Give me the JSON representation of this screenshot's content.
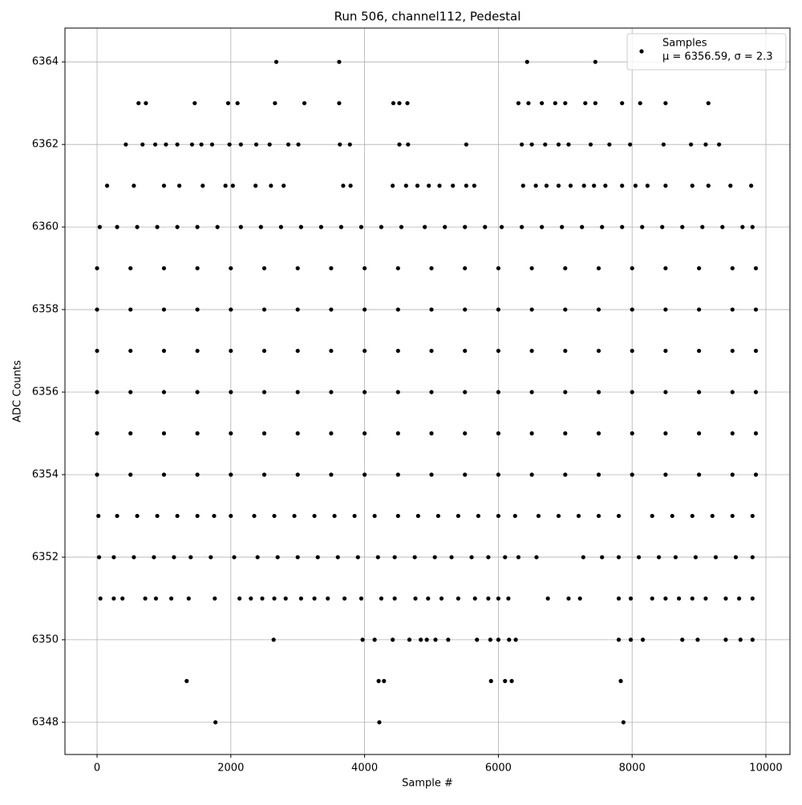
{
  "chart_data": {
    "type": "scatter",
    "title": "Run 506, channel112, Pedestal",
    "x_label": "Sample #",
    "y_label": "ADC Counts",
    "xlim": [
      -480,
      10360
    ],
    "ylim": [
      6347.22,
      6364.82
    ],
    "xticks": [
      0,
      2000,
      4000,
      6000,
      8000,
      10000
    ],
    "yticks": [
      6348,
      6350,
      6352,
      6354,
      6356,
      6358,
      6360,
      6362,
      6364
    ],
    "grid": true,
    "legend_position": "upper right",
    "series": [
      {
        "name": "Samples",
        "annotation": "μ = 6356.59, σ = 2.3",
        "color": "#000000",
        "rows": [
          {
            "y": 6364,
            "x": [
              2680,
              3620,
              6430,
              7450
            ]
          },
          {
            "y": 6363,
            "x": [
              620,
              730,
              1460,
              1960,
              2100,
              2660,
              3100,
              3620,
              4430,
              4520,
              4640,
              6300,
              6450,
              6650,
              6850,
              7000,
              7300,
              7450,
              7850,
              8120,
              8500,
              9140
            ]
          },
          {
            "y": 6362,
            "x": [
              430,
              680,
              870,
              1030,
              1200,
              1420,
              1560,
              1720,
              1980,
              2150,
              2380,
              2580,
              2860,
              3010,
              3630,
              3780,
              4520,
              4650,
              5520,
              6350,
              6500,
              6700,
              6900,
              7050,
              7380,
              7660,
              7970,
              8470,
              8880,
              9100,
              9300
            ]
          },
          {
            "y": 6361,
            "x": [
              150,
              550,
              1000,
              1230,
              1580,
              1920,
              2030,
              2370,
              2600,
              2790,
              3680,
              3790,
              4420,
              4620,
              4790,
              4960,
              5120,
              5320,
              5520,
              5640,
              6370,
              6560,
              6720,
              6900,
              7080,
              7280,
              7430,
              7600,
              7850,
              8050,
              8230,
              8500,
              8900,
              9140,
              9470,
              9780
            ]
          },
          {
            "y": 6360,
            "x": [
              40,
              300,
              600,
              900,
              1200,
              1500,
              1800,
              2150,
              2450,
              2750,
              3050,
              3350,
              3650,
              3950,
              4250,
              4550,
              4900,
              5200,
              5500,
              5800,
              6050,
              6350,
              6650,
              6950,
              7250,
              7550,
              7850,
              8150,
              8450,
              8750,
              9050,
              9350,
              9650,
              9800
            ]
          },
          {
            "y": 6359,
            "x": [
              0,
              500,
              1000,
              1500,
              2000,
              2500,
              3000,
              3500,
              4000,
              4500,
              5000,
              5500,
              6000,
              6500,
              7000,
              7500,
              8000,
              8500,
              9000,
              9500,
              9850
            ]
          },
          {
            "y": 6358,
            "x": [
              0,
              500,
              1000,
              1500,
              2000,
              2500,
              3000,
              3500,
              4000,
              4500,
              5000,
              5500,
              6000,
              6500,
              7000,
              7500,
              8000,
              8500,
              9000,
              9500,
              9850
            ]
          },
          {
            "y": 6357,
            "x": [
              0,
              500,
              1000,
              1500,
              2000,
              2500,
              3000,
              3500,
              4000,
              4500,
              5000,
              5500,
              6000,
              6500,
              7000,
              7500,
              8000,
              8500,
              9000,
              9500,
              9850
            ]
          },
          {
            "y": 6356,
            "x": [
              0,
              500,
              1000,
              1500,
              2000,
              2500,
              3000,
              3500,
              4000,
              4500,
              5000,
              5500,
              6000,
              6500,
              7000,
              7500,
              8000,
              8500,
              9000,
              9500,
              9850
            ]
          },
          {
            "y": 6355,
            "x": [
              0,
              500,
              1000,
              1500,
              2000,
              2500,
              3000,
              3500,
              4000,
              4500,
              5000,
              5500,
              6000,
              6500,
              7000,
              7500,
              8000,
              8500,
              9000,
              9500,
              9850
            ]
          },
          {
            "y": 6354,
            "x": [
              0,
              500,
              1000,
              1500,
              2000,
              2500,
              3000,
              3500,
              4000,
              4500,
              5000,
              5500,
              6000,
              6500,
              7000,
              7500,
              8000,
              8500,
              9000,
              9500,
              9850
            ]
          },
          {
            "y": 6353,
            "x": [
              20,
              300,
              600,
              900,
              1200,
              1500,
              1750,
              2000,
              2350,
              2650,
              2950,
              3250,
              3550,
              3850,
              4150,
              4500,
              4800,
              5100,
              5400,
              5700,
              6000,
              6250,
              6600,
              6900,
              7200,
              7500,
              7800,
              8300,
              8600,
              8900,
              9200,
              9500,
              9800
            ]
          },
          {
            "y": 6352,
            "x": [
              30,
              250,
              550,
              850,
              1150,
              1400,
              1700,
              2050,
              2400,
              2700,
              3000,
              3300,
              3600,
              3900,
              4200,
              4450,
              4750,
              5050,
              5300,
              5600,
              5850,
              6100,
              6300,
              6570,
              7270,
              7550,
              7800,
              8100,
              8400,
              8650,
              8950,
              9250,
              9550,
              9800
            ]
          },
          {
            "y": 6351,
            "x": [
              50,
              250,
              380,
              720,
              880,
              1110,
              1370,
              1760,
              2130,
              2300,
              2470,
              2650,
              2820,
              3050,
              3250,
              3450,
              3700,
              3950,
              4250,
              4450,
              4760,
              4950,
              5150,
              5400,
              5650,
              5850,
              6000,
              6150,
              6740,
              7050,
              7220,
              7800,
              7980,
              8300,
              8500,
              8700,
              8900,
              9100,
              9400,
              9600,
              9800
            ]
          },
          {
            "y": 6350,
            "x": [
              2640,
              3970,
              4150,
              4420,
              4670,
              4840,
              4930,
              5060,
              5250,
              5680,
              5880,
              6000,
              6160,
              6260,
              7800,
              7980,
              8160,
              8750,
              8980,
              9400,
              9620,
              9800
            ]
          },
          {
            "y": 6349,
            "x": [
              1340,
              4210,
              4290,
              5890,
              6100,
              6200,
              7830
            ]
          },
          {
            "y": 6348,
            "x": [
              1770,
              4220,
              7870
            ]
          }
        ]
      }
    ]
  }
}
